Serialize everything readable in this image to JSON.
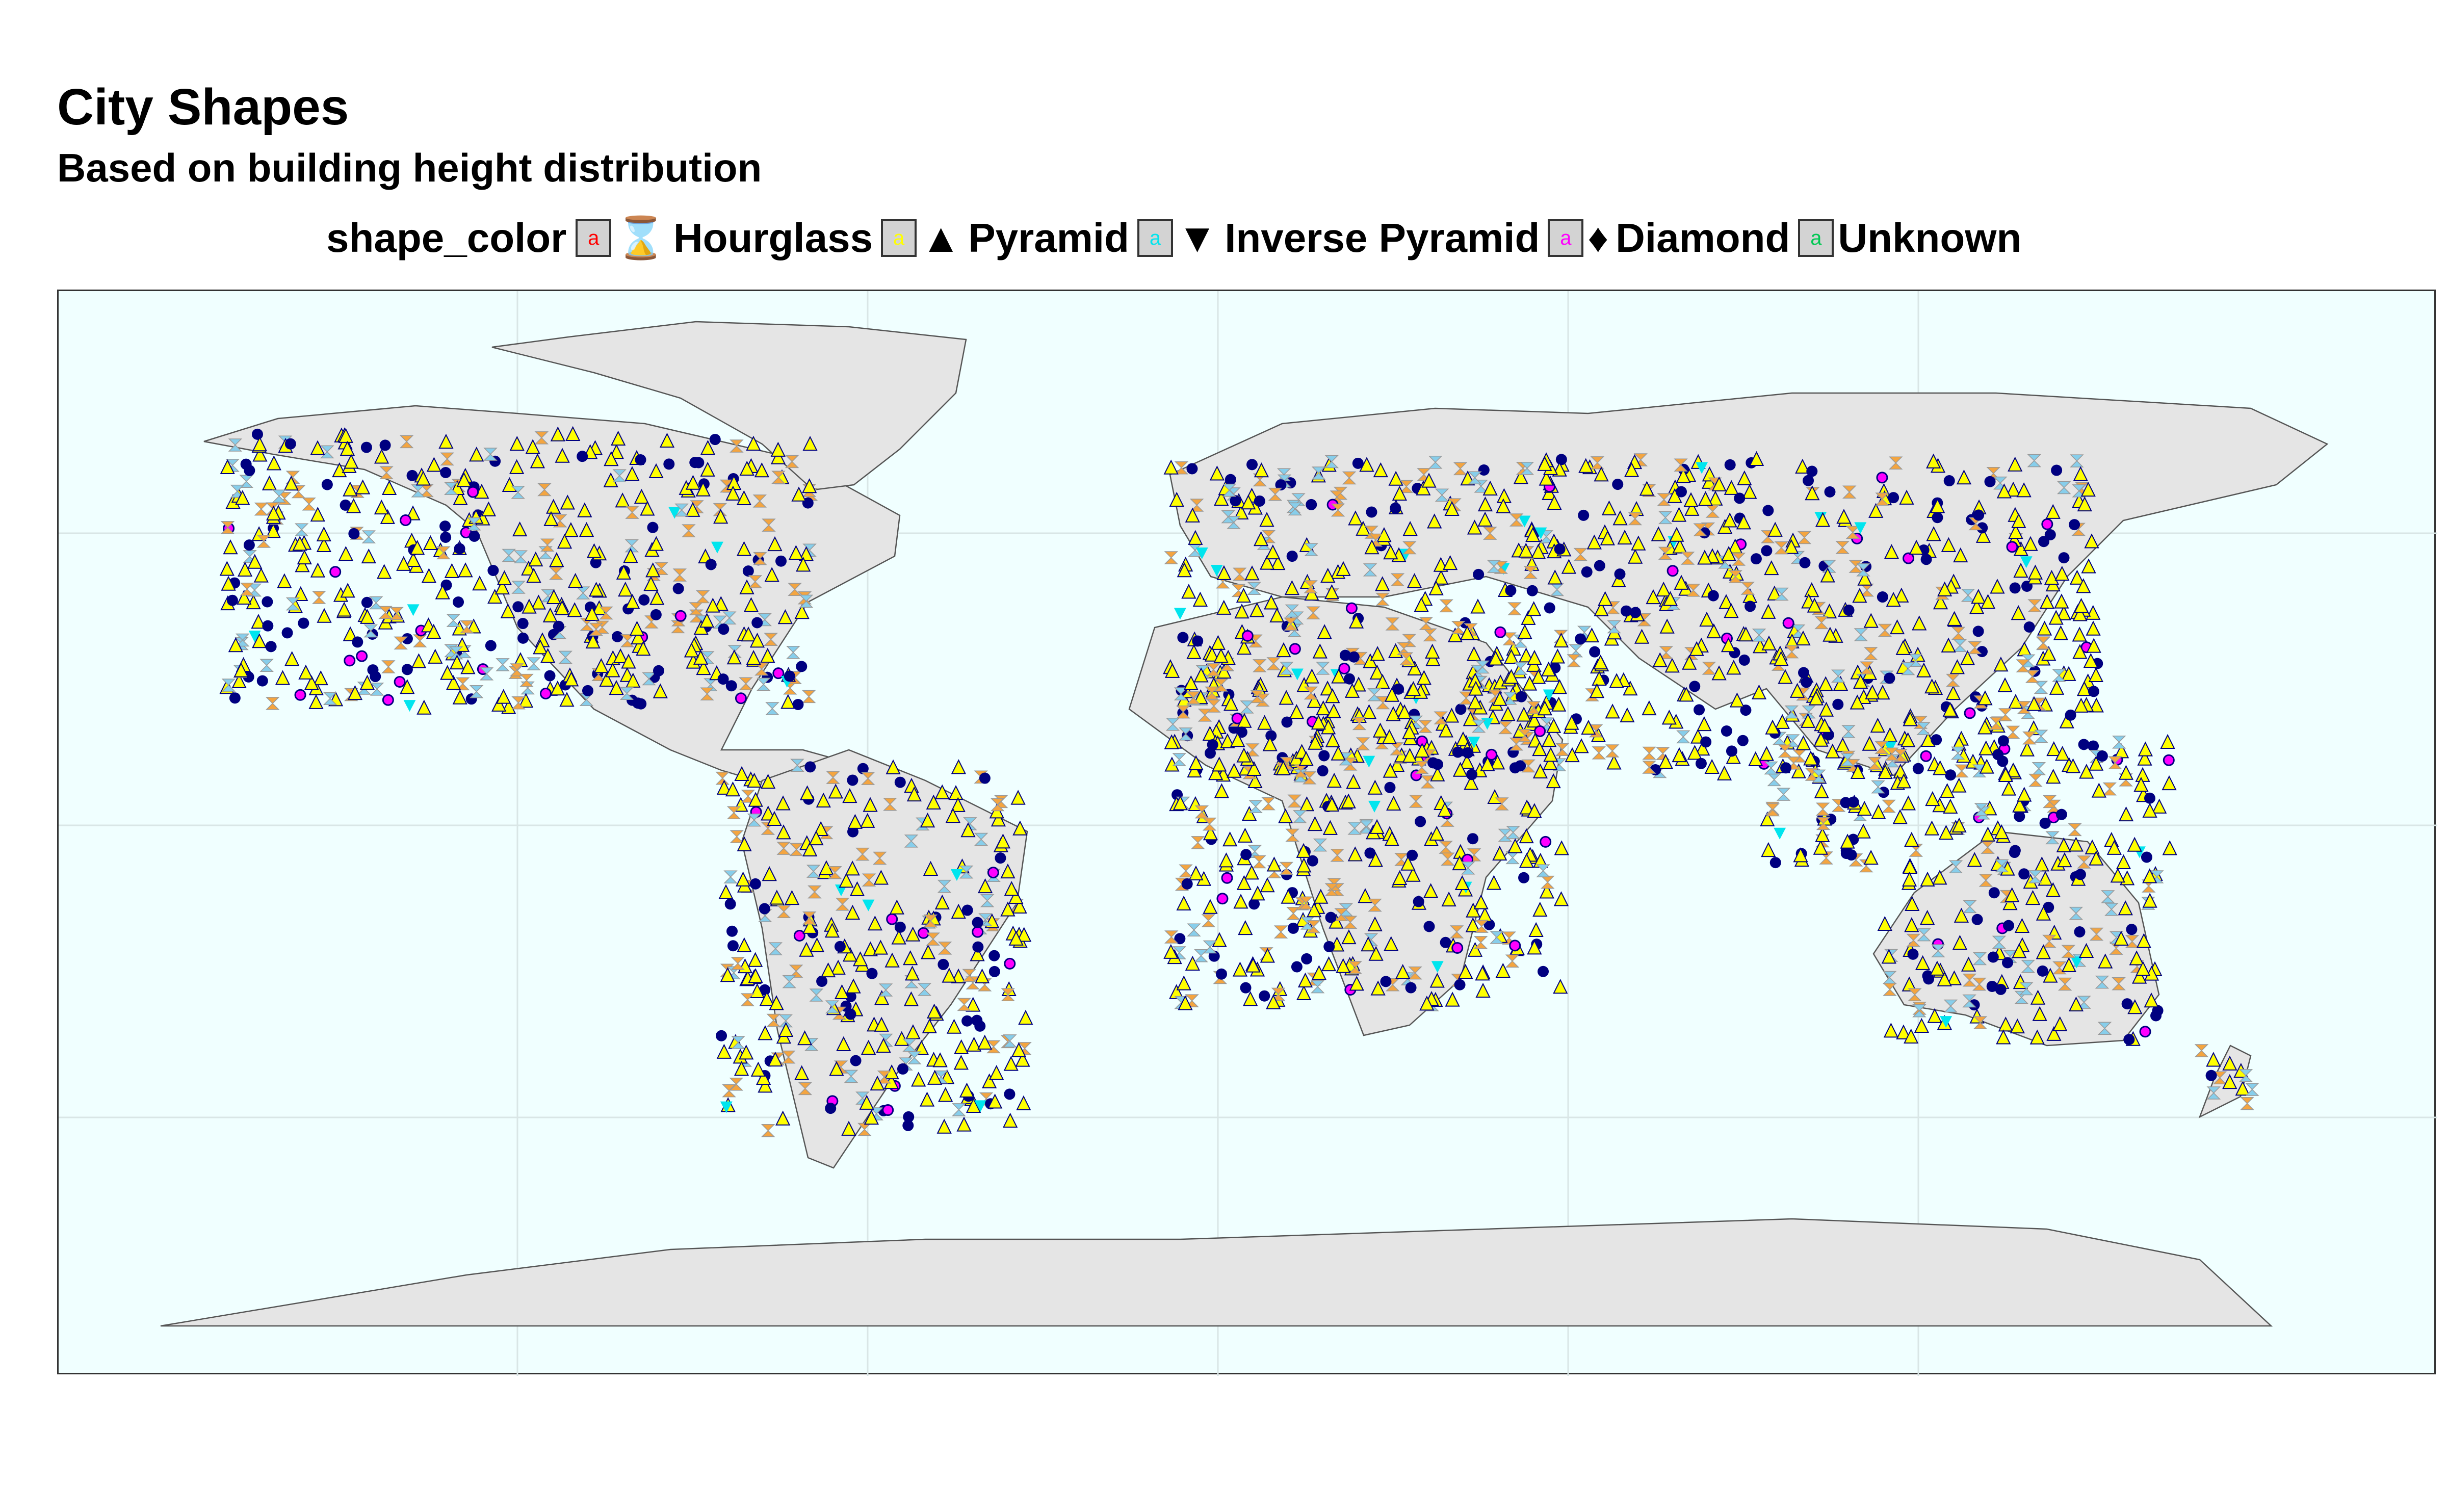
{
  "title": "City Shapes",
  "subtitle": "Based on building height distribution",
  "legend": {
    "title": "shape_color",
    "key_glyph": "a",
    "items": [
      {
        "label": "Hourglass",
        "symbol": "⌛",
        "color": "#ff0000"
      },
      {
        "label": "Pyramid",
        "symbol": "▲",
        "color": "#ffff00"
      },
      {
        "label": "Inverse Pyramid",
        "symbol": "▼",
        "color": "#00e5ee"
      },
      {
        "label": "Diamond",
        "symbol": "♦",
        "color": "#ff00ff"
      },
      {
        "label": "Unknown",
        "symbol": "",
        "color": "#00c853"
      }
    ]
  },
  "map": {
    "background": "#f0ffff",
    "land": "#e5e5e5",
    "marker_colors": {
      "pyramid": "#ffff00",
      "hourglass": "#f4a540",
      "hourglass_alt": "#87ceeb",
      "point": "#000080",
      "diamond": "#ff00ff",
      "inverse": "#00e5ee"
    }
  }
}
